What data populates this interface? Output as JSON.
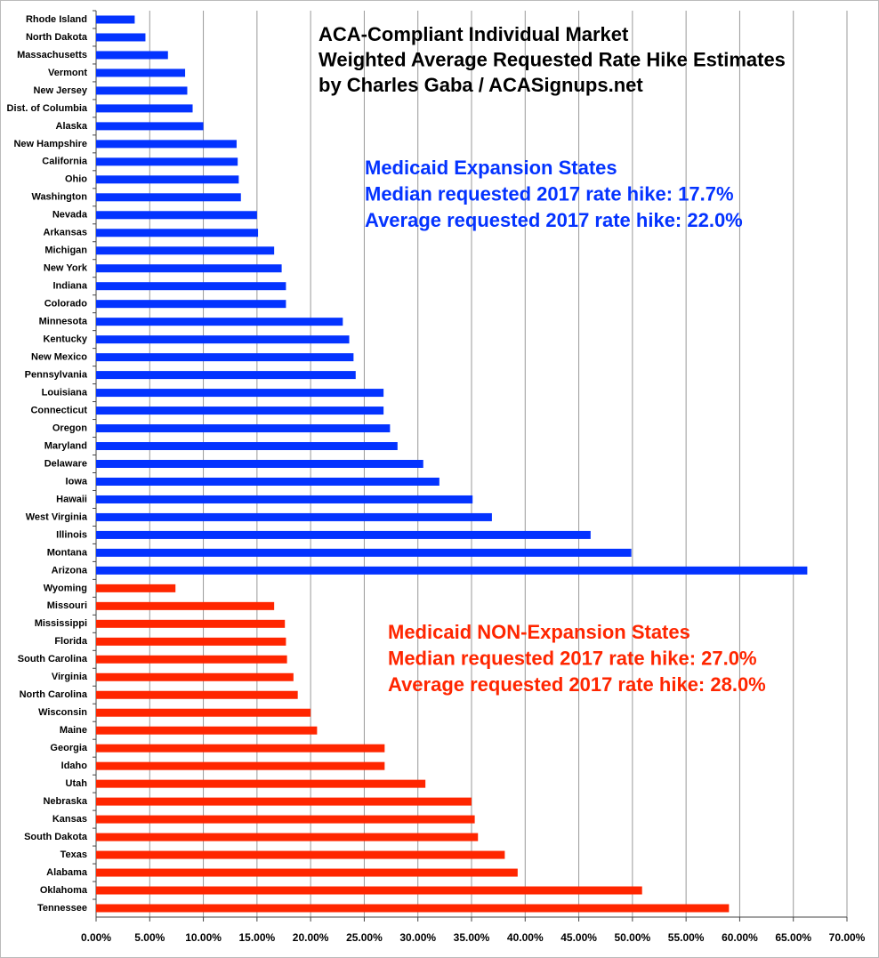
{
  "chart_data": {
    "type": "bar",
    "orientation": "horizontal",
    "title": [
      "ACA-Compliant Individual Market",
      "Weighted Average Requested Rate Hike Estimates",
      "by Charles Gaba / ACASignups.net"
    ],
    "categories": [
      "Rhode Island",
      "North Dakota",
      "Massachusetts",
      "Vermont",
      "New Jersey",
      "Dist. of Columbia",
      "Alaska",
      "New Hampshire",
      "California",
      "Ohio",
      "Washington",
      "Nevada",
      "Arkansas",
      "Michigan",
      "New York",
      "Indiana",
      "Colorado",
      "Minnesota",
      "Kentucky",
      "New Mexico",
      "Pennsylvania",
      "Louisiana",
      "Connecticut",
      "Oregon",
      "Maryland",
      "Delaware",
      "Iowa",
      "Hawaii",
      "West Virginia",
      "Illinois",
      "Montana",
      "Arizona",
      "Wyoming",
      "Missouri",
      "Mississippi",
      "Florida",
      "South Carolina",
      "Virginia",
      "North Carolina",
      "Wisconsin",
      "Maine",
      "Georgia",
      "Idaho",
      "Utah",
      "Nebraska",
      "Kansas",
      "South Dakota",
      "Texas",
      "Alabama",
      "Oklahoma",
      "Tennessee"
    ],
    "series": [
      {
        "color": "#0433ff",
        "values": [
          3.6,
          4.6,
          6.7,
          8.3,
          8.5,
          9.0,
          10.0,
          13.1,
          13.2,
          13.3,
          13.5,
          15.0,
          15.1,
          16.6,
          17.3,
          17.7,
          17.7,
          23.0,
          23.6,
          24.0,
          24.2,
          26.8,
          26.8,
          27.4,
          28.1,
          30.5,
          32.0,
          35.1,
          36.9,
          46.1,
          49.9,
          66.3,
          null,
          null,
          null,
          null,
          null,
          null,
          null,
          null,
          null,
          null,
          null,
          null,
          null,
          null,
          null,
          null,
          null,
          null,
          null
        ]
      },
      {
        "color": "#ff2600",
        "values": [
          null,
          null,
          null,
          null,
          null,
          null,
          null,
          null,
          null,
          null,
          null,
          null,
          null,
          null,
          null,
          null,
          null,
          null,
          null,
          null,
          null,
          null,
          null,
          null,
          null,
          null,
          null,
          null,
          null,
          null,
          null,
          null,
          7.4,
          16.6,
          17.6,
          17.7,
          17.8,
          18.4,
          18.8,
          20.0,
          20.6,
          26.9,
          26.9,
          30.7,
          35.0,
          35.3,
          35.6,
          38.1,
          39.3,
          50.9,
          59.0
        ]
      }
    ],
    "annotations": [
      {
        "color": "#0433ff",
        "lines": [
          "Medicaid Expansion States",
          "Median requested 2017 rate hike: 17.7%",
          "Average requested 2017 rate hike: 22.0%"
        ]
      },
      {
        "color": "#ff2600",
        "lines": [
          "Medicaid NON-Expansion States",
          "Median requested 2017 rate hike: 27.0%",
          "Average requested 2017 rate hike: 28.0%"
        ]
      }
    ],
    "xlim": [
      0,
      70
    ],
    "xticks": [
      {
        "value": 0,
        "label": "0.00%"
      },
      {
        "value": 5,
        "label": "5.00%"
      },
      {
        "value": 10,
        "label": "10.00%"
      },
      {
        "value": 15,
        "label": "15.00%"
      },
      {
        "value": 20,
        "label": "20.00%"
      },
      {
        "value": 25,
        "label": "25.00%"
      },
      {
        "value": 30,
        "label": "30.00%"
      },
      {
        "value": 35,
        "label": "35.00%"
      },
      {
        "value": 40,
        "label": "40.00%"
      },
      {
        "value": 45,
        "label": "45.00%"
      },
      {
        "value": 50,
        "label": "50.00%"
      },
      {
        "value": 55,
        "label": "55.00%"
      },
      {
        "value": 60,
        "label": "60.00%"
      },
      {
        "value": 65,
        "label": "65.00%"
      },
      {
        "value": 70,
        "label": "70.00%"
      }
    ],
    "grid": true
  }
}
